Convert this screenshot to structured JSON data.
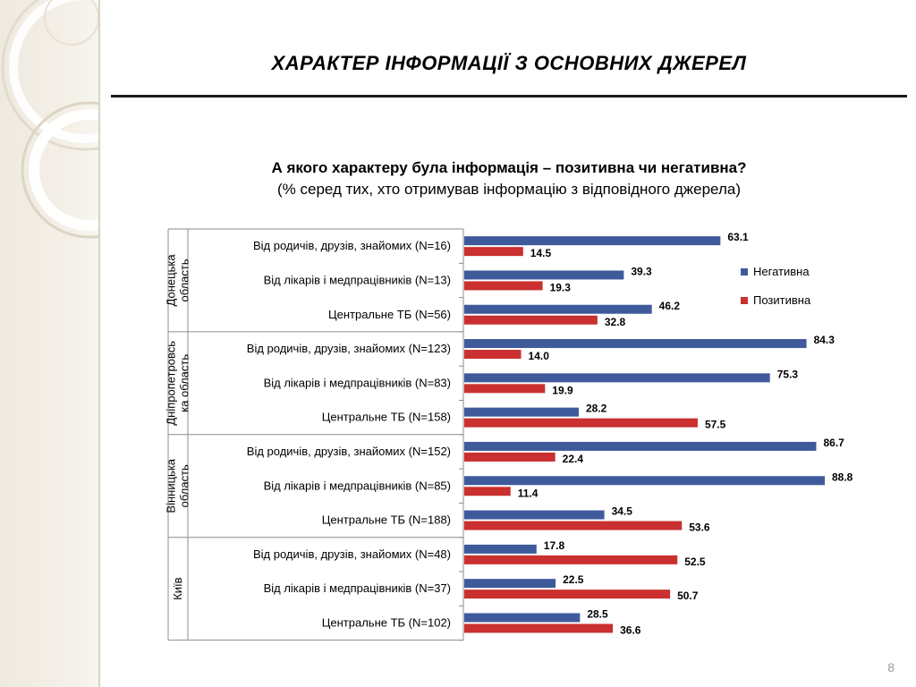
{
  "slide": {
    "title": "ХАРАКТЕР ІНФОРМАЦІЇ З ОСНОВНИХ ДЖЕРЕЛ",
    "page_number": "8"
  },
  "chart_data": {
    "type": "bar",
    "orientation": "horizontal",
    "title": "А якого характеру була інформація – позитивна чи негативна?",
    "subtitle": "(% серед тих, хто отримував інформацію з відповідного джерела)",
    "xlim": [
      0,
      100
    ],
    "grid": false,
    "legend_position": "right",
    "colors": {
      "negative": "#3f5a9b",
      "positive": "#c9302f"
    },
    "legend": [
      {
        "name": "Негативна",
        "color": "#3f5a9b"
      },
      {
        "name": "Позитивна",
        "color": "#c9302f"
      }
    ],
    "groups": [
      {
        "name_lines": [
          "Донецька",
          "область"
        ],
        "items": [
          {
            "label": "Від родичів, друзів, знайомих (N=16)",
            "negative": 63.1,
            "positive": 14.5
          },
          {
            "label": "Від лікарів і медпрацівників (N=13)",
            "negative": 39.3,
            "positive": 19.3
          },
          {
            "label": "Центральне ТБ (N=56)",
            "negative": 46.2,
            "positive": 32.8
          }
        ]
      },
      {
        "name_lines": [
          "Дніпропетровсь",
          "ка область"
        ],
        "items": [
          {
            "label": "Від родичів, друзів, знайомих (N=123)",
            "negative": 84.3,
            "positive": 14.0
          },
          {
            "label": "Від лікарів і медпрацівників (N=83)",
            "negative": 75.3,
            "positive": 19.9
          },
          {
            "label": "Центральне ТБ (N=158)",
            "negative": 28.2,
            "positive": 57.5
          }
        ]
      },
      {
        "name_lines": [
          "Вінницька",
          "область"
        ],
        "items": [
          {
            "label": "Від родичів, друзів, знайомих (N=152)",
            "negative": 86.7,
            "positive": 22.4
          },
          {
            "label": "Від лікарів і медпрацівників (N=85)",
            "negative": 88.8,
            "positive": 11.4
          },
          {
            "label": "Центральне ТБ (N=188)",
            "negative": 34.5,
            "positive": 53.6
          }
        ]
      },
      {
        "name_lines": [
          "Київ"
        ],
        "items": [
          {
            "label": "Від родичів, друзів, знайомих (N=48)",
            "negative": 17.8,
            "positive": 52.5
          },
          {
            "label": "Від лікарів і медпрацівників (N=37)",
            "negative": 22.5,
            "positive": 50.7
          },
          {
            "label": "Центральне ТБ (N=102)",
            "negative": 28.5,
            "positive": 36.6
          }
        ]
      }
    ]
  }
}
